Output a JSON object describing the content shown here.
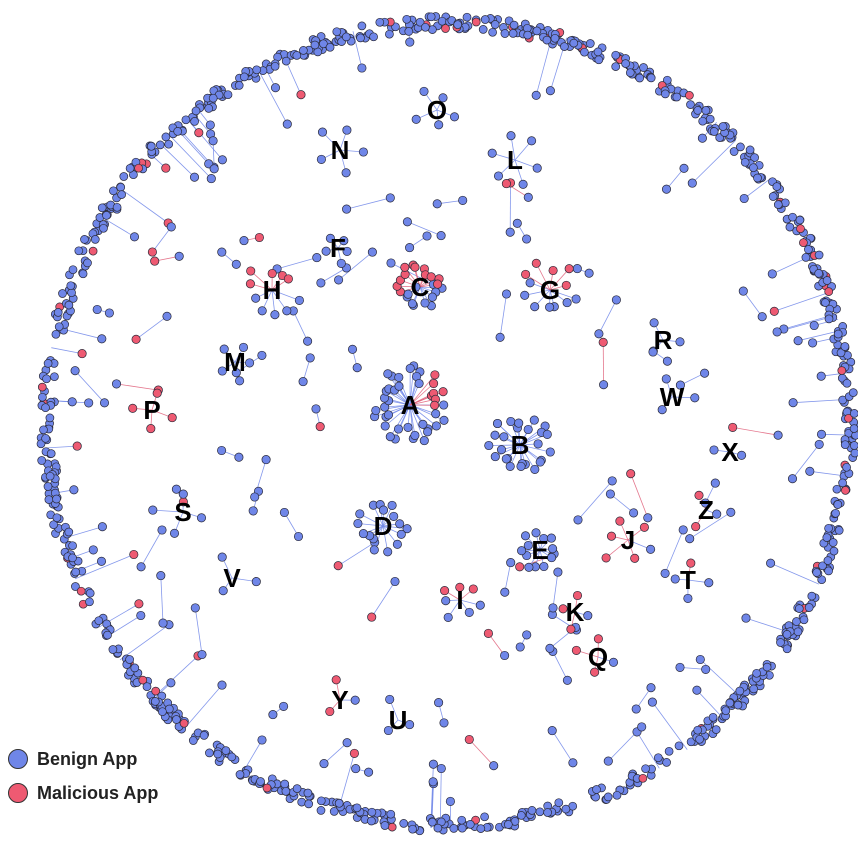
{
  "colors": {
    "benign": "#6f86e8",
    "malicious": "#ee5a72",
    "benign_edge": "#6f86e8",
    "malicious_edge": "#e0607a",
    "node_stroke": "#2b2b3a"
  },
  "legend": [
    {
      "label": "Benign App",
      "type": "benign"
    },
    {
      "label": "Malicious App",
      "type": "malicious"
    }
  ],
  "clusters": [
    {
      "label": "A",
      "benign": 34,
      "malicious": 7
    },
    {
      "label": "B",
      "benign": 26,
      "malicious": 0
    },
    {
      "label": "C",
      "benign": 8,
      "malicious": 12
    },
    {
      "label": "D",
      "benign": 16,
      "malicious": 0
    },
    {
      "label": "E",
      "benign": 13,
      "malicious": 0
    },
    {
      "label": "F",
      "benign": 5,
      "malicious": 0
    },
    {
      "label": "G",
      "benign": 7,
      "malicious": 5
    },
    {
      "label": "H",
      "benign": 5,
      "malicious": 5
    },
    {
      "label": "I",
      "benign": 4,
      "malicious": 3
    },
    {
      "label": "J",
      "benign": 1,
      "malicious": 5
    },
    {
      "label": "K",
      "benign": 1,
      "malicious": 3
    },
    {
      "label": "L",
      "benign": 6,
      "malicious": 0
    },
    {
      "label": "M",
      "benign": 5,
      "malicious": 0
    },
    {
      "label": "N",
      "benign": 5,
      "malicious": 0
    },
    {
      "label": "O",
      "benign": 5,
      "malicious": 0
    },
    {
      "label": "P",
      "benign": 0,
      "malicious": 4
    },
    {
      "label": "Q",
      "benign": 1,
      "malicious": 3
    },
    {
      "label": "R",
      "benign": 3,
      "malicious": 0
    },
    {
      "label": "S",
      "benign": 4,
      "malicious": 0
    },
    {
      "label": "T",
      "benign": 3,
      "malicious": 1
    },
    {
      "label": "U",
      "benign": 3,
      "malicious": 0
    },
    {
      "label": "V",
      "benign": 3,
      "malicious": 0
    },
    {
      "label": "W",
      "benign": 3,
      "malicious": 0
    },
    {
      "label": "X",
      "benign": 2,
      "malicious": 0
    },
    {
      "label": "Y",
      "benign": 1,
      "malicious": 2
    },
    {
      "label": "Z",
      "benign": 1,
      "malicious": 2
    }
  ]
}
